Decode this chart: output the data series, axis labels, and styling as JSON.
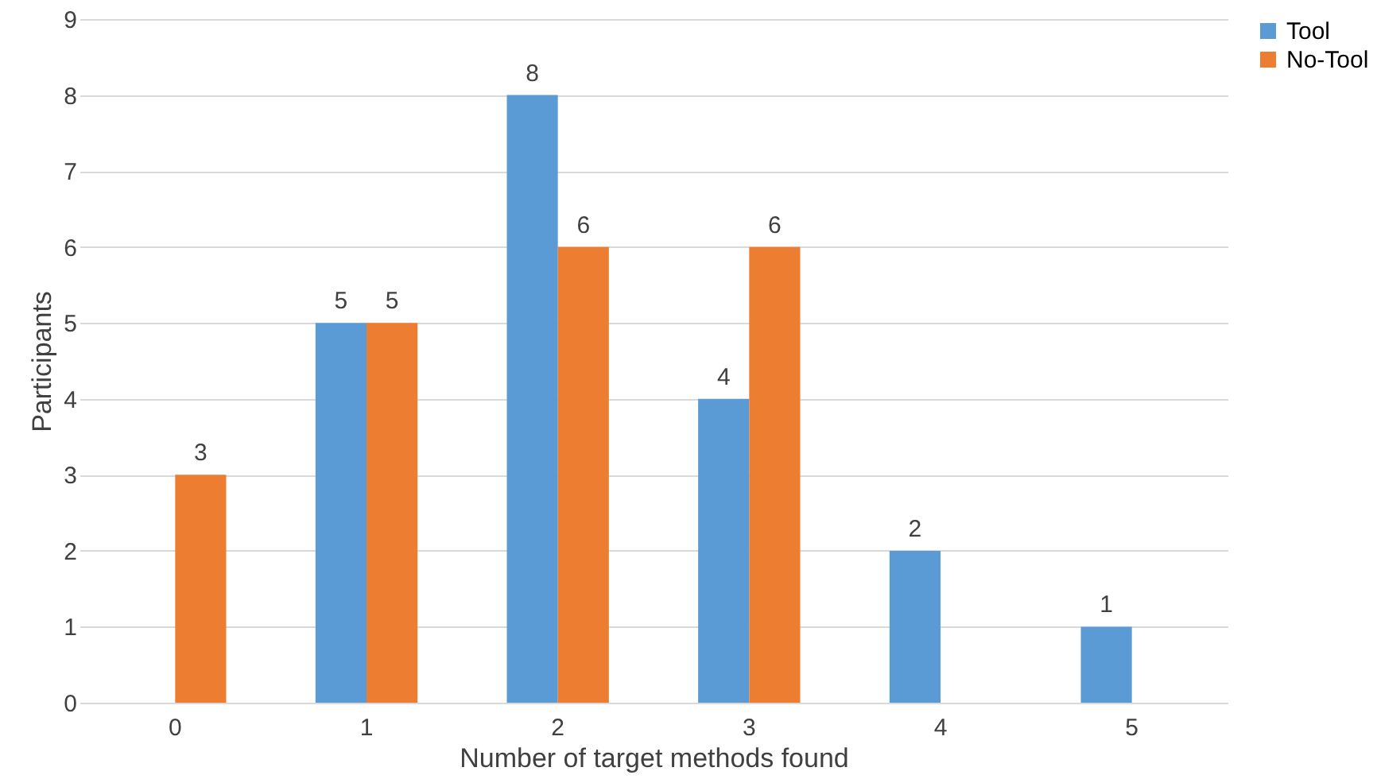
{
  "chart_data": {
    "type": "bar",
    "xlabel": "Number of target methods found",
    "ylabel": "Participants",
    "categories": [
      "0",
      "1",
      "2",
      "3",
      "4",
      "5"
    ],
    "series": [
      {
        "name": "Tool",
        "color": "#5b9bd5",
        "values": [
          null,
          5,
          8,
          4,
          2,
          1
        ]
      },
      {
        "name": "No-Tool",
        "color": "#ed7d31",
        "values": [
          3,
          5,
          6,
          6,
          null,
          null
        ]
      }
    ],
    "ylim": [
      0,
      9
    ],
    "yticks": [
      0,
      1,
      2,
      3,
      4,
      5,
      6,
      7,
      8,
      9
    ],
    "grid": "y",
    "legend": "right",
    "data_labels": true
  }
}
